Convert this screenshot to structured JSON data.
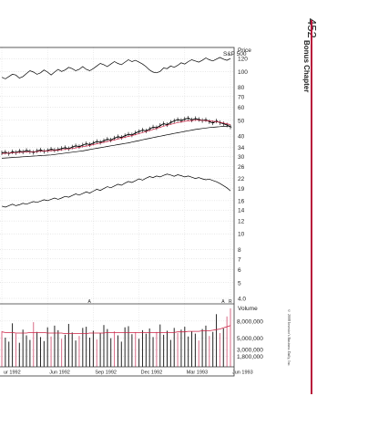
{
  "page": {
    "page_number": "452",
    "chapter_label": "Bonus Chapter",
    "copyright": "© 2008 Investor's Business Daily, Inc.",
    "accent_color": "#b8143a"
  },
  "chart_data": {
    "type": "line",
    "price_panel": {
      "axis_title": "Price",
      "scale": "log",
      "ylim": [
        4,
        130
      ],
      "ticks": [
        120,
        100,
        80,
        70,
        60,
        50,
        40,
        34,
        30,
        26,
        22,
        19,
        16,
        14,
        12,
        10,
        8,
        7,
        6,
        5,
        4.0
      ],
      "tick_labels": [
        "120",
        "100",
        "80",
        "70",
        "60",
        "50",
        "40",
        "34",
        "30",
        "26",
        "22",
        "19",
        "16",
        "14",
        "12",
        "10",
        "8",
        "7",
        "6",
        "5",
        "4.0"
      ],
      "series": [
        {
          "name": "S&P 500",
          "role": "index",
          "color": "#000000",
          "values": [
            92,
            90,
            93,
            96,
            95,
            91,
            93,
            97,
            101,
            99,
            96,
            98,
            102,
            99,
            95,
            99,
            103,
            100,
            102,
            106,
            104,
            101,
            103,
            107,
            103,
            101,
            104,
            108,
            112,
            110,
            107,
            111,
            115,
            112,
            110,
            114,
            118,
            115,
            117,
            114,
            111,
            107,
            102,
            99,
            98,
            100,
            105,
            104,
            108,
            106,
            109,
            113,
            111,
            115,
            118,
            116,
            114,
            117,
            121,
            118,
            116,
            119,
            122,
            119,
            117,
            120
          ]
        },
        {
          "role": "price",
          "color": "#000000",
          "values": [
            31.5,
            31.8,
            31.2,
            32,
            31.6,
            32.3,
            31.9,
            32.6,
            32.1,
            31.7,
            32.4,
            32.8,
            32.2,
            32.6,
            33.2,
            32.7,
            33,
            33.5,
            33.9,
            33.4,
            34.2,
            34.8,
            34.4,
            35.2,
            35.8,
            35.4,
            36.2,
            37,
            36.6,
            37.4,
            38.2,
            37.8,
            38.8,
            39.6,
            39.2,
            40.2,
            41,
            40.6,
            41.8,
            42.6,
            43.5,
            43,
            44.2,
            45.4,
            45,
            46.4,
            47.6,
            47,
            48.5,
            49.6,
            50.5,
            49.8,
            50.8,
            51.5,
            50.2,
            51.2,
            50.6,
            49.8,
            50.4,
            49,
            48.2,
            49.5,
            48.3,
            47.6,
            46.8,
            45.5
          ]
        },
        {
          "role": "moving-average-10wk",
          "color": "#cc2244",
          "values": [
            31.2,
            31.3,
            31.4,
            31.5,
            31.6,
            31.7,
            31.8,
            31.9,
            32,
            32,
            32.1,
            32.2,
            32.3,
            32.4,
            32.5,
            32.6,
            32.7,
            32.9,
            33.1,
            33.3,
            33.5,
            33.8,
            34.1,
            34.4,
            34.7,
            35,
            35.4,
            35.8,
            36.2,
            36.6,
            37,
            37.4,
            37.8,
            38.3,
            38.8,
            39.3,
            39.8,
            40.3,
            40.8,
            41.4,
            42,
            42.6,
            43.2,
            43.9,
            44.6,
            45.3,
            46,
            46.6,
            47.2,
            47.8,
            48.4,
            48.9,
            49.3,
            49.6,
            49.8,
            50,
            50,
            49.9,
            49.8,
            49.6,
            49.3,
            49,
            48.6,
            48.1,
            47.6,
            47
          ]
        },
        {
          "role": "moving-average-40wk",
          "color": "#000000",
          "values": [
            29.2,
            29.3,
            29.4,
            29.5,
            29.6,
            29.7,
            29.8,
            29.9,
            30,
            30.1,
            30.2,
            30.3,
            30.4,
            30.5,
            30.6,
            30.8,
            31,
            31.2,
            31.4,
            31.6,
            31.8,
            32,
            32.2,
            32.4,
            32.7,
            33,
            33.3,
            33.6,
            33.9,
            34.2,
            34.5,
            34.8,
            35.1,
            35.4,
            35.7,
            36,
            36.3,
            36.7,
            37.1,
            37.5,
            37.9,
            38.3,
            38.7,
            39.1,
            39.5,
            39.9,
            40.3,
            40.7,
            41.1,
            41.5,
            41.9,
            42.3,
            42.7,
            43.1,
            43.5,
            43.9,
            44.2,
            44.5,
            44.8,
            45.1,
            45.3,
            45.5,
            45.7,
            45.9,
            46,
            46.1
          ]
        },
        {
          "role": "relative-strength",
          "color": "#000000",
          "values": [
            14.8,
            14.6,
            14.9,
            15.2,
            14.9,
            15.1,
            15.4,
            15.2,
            15.5,
            15.8,
            15.6,
            15.9,
            16.2,
            16,
            16.3,
            16.6,
            16.3,
            16.6,
            17,
            16.8,
            17.2,
            17.6,
            17.3,
            17.7,
            18.1,
            17.8,
            18.3,
            18.8,
            18.5,
            19,
            19.5,
            19.2,
            19.7,
            20.2,
            19.9,
            20.5,
            21,
            20.7,
            21.2,
            21.8,
            21.4,
            22,
            22.5,
            22.2,
            22.7,
            22.4,
            22.9,
            23.3,
            23,
            22.6,
            23.1,
            22.8,
            22.4,
            22.7,
            22.3,
            21.9,
            22.2,
            21.8,
            21.5,
            21.7,
            21.3,
            20.9,
            20.4,
            19.8,
            19.2,
            18.4
          ]
        }
      ],
      "markers": [
        "A",
        "A",
        "R"
      ]
    },
    "volume_panel": {
      "axis_title": "Volume",
      "ticks": [
        8000000,
        5000000,
        3000000,
        1800000
      ],
      "tick_labels": [
        "8,000,000",
        "5,000,000",
        "3,000,000",
        "1,800,000"
      ],
      "ylim": [
        0,
        11000000
      ],
      "values": [
        6.2,
        5.1,
        4.4,
        7.6,
        5.8,
        4.2,
        6.5,
        5.5,
        4.7,
        7.8,
        6.1,
        5.2,
        4.5,
        6.9,
        5.3,
        7.2,
        6.4,
        4.9,
        5.6,
        7.5,
        6,
        4.6,
        5.4,
        6.8,
        7,
        5.1,
        6.3,
        4.8,
        5.9,
        7.3,
        6.6,
        5,
        6.2,
        5.5,
        4.4,
        6.9,
        7.1,
        5.7,
        6,
        4.9,
        6.4,
        5.8,
        6.7,
        5.2,
        6.1,
        7.4,
        5.6,
        6.3,
        4.7,
        6.8,
        5.9,
        6.5,
        7,
        5.3,
        6.2,
        5.8,
        4.6,
        6.6,
        7.2,
        5.4,
        6.1,
        9.2,
        5.9,
        6.7,
        8.8,
        10.2
      ],
      "highlighted_indices": [
        0,
        4,
        9,
        14,
        17,
        22,
        27,
        32,
        38,
        44,
        50,
        56,
        59,
        62,
        64,
        65
      ],
      "average_line": [
        6.1,
        6,
        6,
        6,
        5.9,
        5.9,
        5.9,
        5.9,
        6,
        6,
        6,
        6,
        6,
        5.9,
        5.9,
        5.9,
        5.9,
        5.9,
        5.8,
        5.8,
        5.8,
        5.8,
        5.8,
        5.8,
        5.8,
        5.9,
        5.9,
        5.9,
        5.9,
        5.9,
        6,
        6,
        6,
        6,
        6,
        6,
        6,
        6,
        6,
        6,
        6,
        6,
        6,
        6,
        6,
        6,
        6,
        6,
        6,
        6,
        6.1,
        6.1,
        6.1,
        6.2,
        6.2,
        6.2,
        6.2,
        6.3,
        6.3,
        6.3,
        6.4,
        6.5,
        6.6,
        6.8,
        7,
        7.2
      ]
    },
    "x_labels": [
      {
        "label": "ur 1992",
        "index": 0
      },
      {
        "label": "Jun 1992",
        "index": 13
      },
      {
        "label": "Sep 1992",
        "index": 26
      },
      {
        "label": "Dec 1992",
        "index": 39
      },
      {
        "label": "Mar 1993",
        "index": 52
      },
      {
        "label": "Jun 1993",
        "index": 65
      }
    ],
    "grid": true
  }
}
